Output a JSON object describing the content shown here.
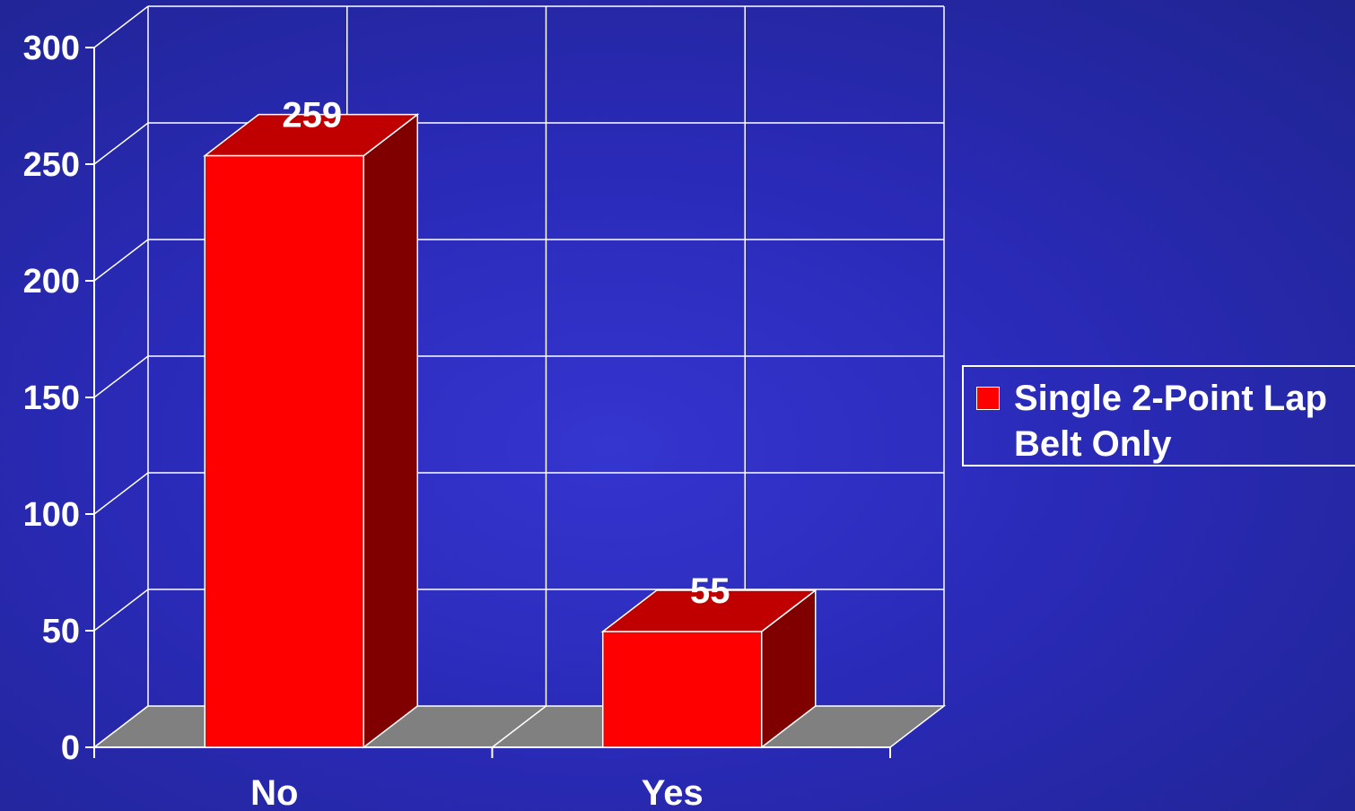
{
  "chart_data": {
    "type": "bar",
    "categories": [
      "No",
      "Yes"
    ],
    "series": [
      {
        "name": "Single 2-Point Lap Belt Only",
        "values": [
          259,
          55
        ],
        "color": "#ff0000"
      }
    ],
    "data_labels": [
      "259",
      "55"
    ],
    "ylim": [
      0,
      300
    ],
    "yticks": [
      0,
      50,
      100,
      150,
      200,
      250,
      300
    ],
    "grid": true,
    "legend_position": "right",
    "three_d": true,
    "colors": {
      "front": "#ff0000",
      "top": "#c00000",
      "side": "#800000",
      "floor": "#808080",
      "grid": "#ffffff"
    }
  },
  "legend": {
    "line1": "Single 2-Point Lap",
    "line2": "Belt Only"
  }
}
